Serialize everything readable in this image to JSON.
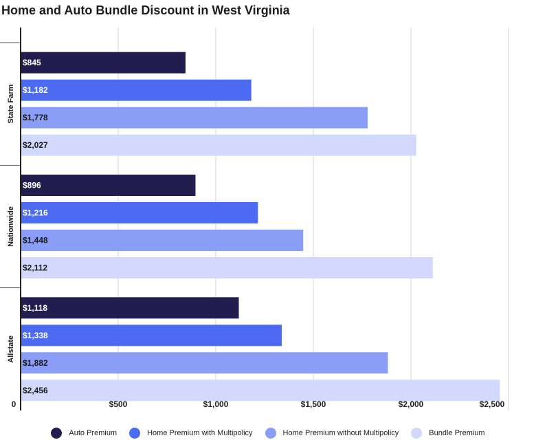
{
  "chart_data": {
    "type": "bar",
    "orientation": "horizontal",
    "title": "Home and Auto Bundle Discount in West Virginia",
    "categories": [
      "State Farm",
      "Nationwide",
      "Allstate"
    ],
    "series": [
      {
        "name": "Auto Premium",
        "color": "#211d4f",
        "values": [
          845,
          896,
          1118
        ],
        "labels": [
          "$845",
          "$896",
          "$1,118"
        ],
        "label_color": "#ffffff"
      },
      {
        "name": "Home Premium with Multipolicy",
        "color": "#4d6af2",
        "values": [
          1182,
          1216,
          1338
        ],
        "labels": [
          "$1,182",
          "$1,216",
          "$1,338"
        ],
        "label_color": "#ffffff"
      },
      {
        "name": "Home Premium without Multipolicy",
        "color": "#8a9ef8",
        "values": [
          1778,
          1448,
          1882
        ],
        "labels": [
          "$1,778",
          "$1,448",
          "$1,882"
        ],
        "label_color": "#1a1a1a"
      },
      {
        "name": "Bundle Premium",
        "color": "#d2d9fc",
        "values": [
          2027,
          2112,
          2456
        ],
        "labels": [
          "$2,027",
          "$2,112",
          "$2,456"
        ],
        "label_color": "#1a1a1a"
      }
    ],
    "xlim": [
      0,
      2500
    ],
    "xticks": [
      0,
      500,
      1000,
      1500,
      2000,
      2500
    ],
    "xtick_labels": [
      "0",
      "$500",
      "$1,000",
      "$1,500",
      "$2,000",
      "$2,500"
    ],
    "grid": true,
    "legend_position": "bottom"
  }
}
